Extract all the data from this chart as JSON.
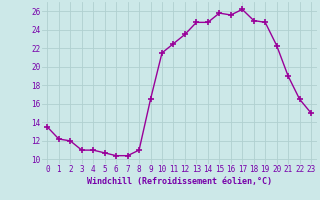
{
  "x": [
    0,
    1,
    2,
    3,
    4,
    5,
    6,
    7,
    8,
    9,
    10,
    11,
    12,
    13,
    14,
    15,
    16,
    17,
    18,
    19,
    20,
    21,
    22,
    23
  ],
  "y": [
    13.5,
    12.2,
    12.0,
    11.0,
    11.0,
    10.7,
    10.4,
    10.4,
    11.0,
    16.5,
    21.5,
    22.5,
    23.5,
    24.8,
    24.8,
    25.8,
    25.6,
    26.2,
    25.0,
    24.8,
    22.3,
    19.0,
    16.5,
    15.0
  ],
  "line_color": "#990099",
  "marker": "+",
  "marker_size": 4,
  "marker_lw": 1.2,
  "bg_color": "#cce8e8",
  "grid_color": "#b0d0d0",
  "xlabel": "Windchill (Refroidissement éolien,°C)",
  "xlabel_color": "#7700aa",
  "xlabel_fontsize": 6.0,
  "tick_color": "#7700aa",
  "tick_fontsize": 5.5,
  "ylim": [
    9.5,
    27.0
  ],
  "yticks": [
    10,
    12,
    14,
    16,
    18,
    20,
    22,
    24,
    26
  ],
  "xlim": [
    -0.5,
    23.5
  ],
  "linewidth": 1.0
}
